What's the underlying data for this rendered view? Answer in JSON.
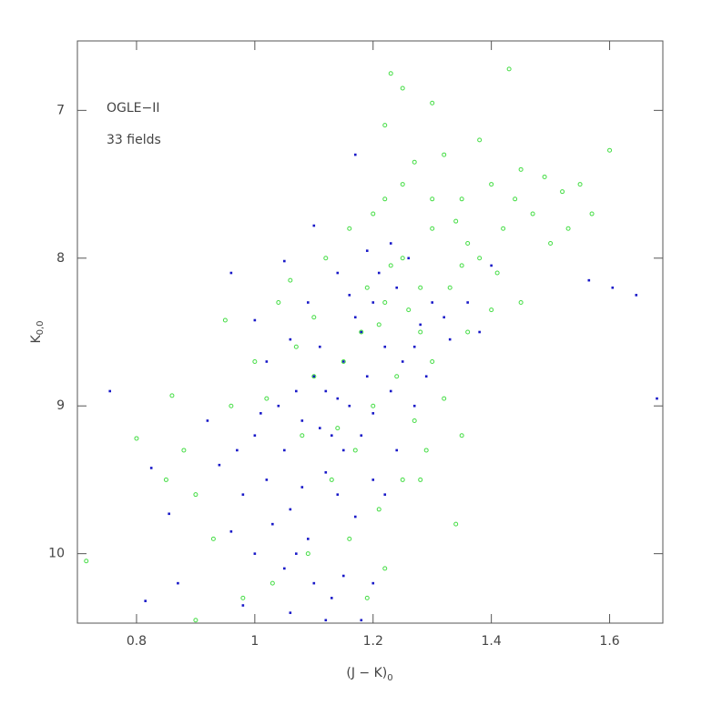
{
  "chart_data": {
    "type": "scatter",
    "annotations": [
      "OGLE−II",
      "33 fields"
    ],
    "x_label": "(J − K)",
    "x_label_sub": "0",
    "y_label": "K",
    "y_label_sub": "0,0",
    "xlim": [
      0.7,
      1.69
    ],
    "ylim": [
      10.47,
      6.53
    ],
    "xticks": [
      0.8,
      1,
      1.2,
      1.4,
      1.6
    ],
    "yticks": [
      7,
      8,
      9,
      10
    ],
    "series": [
      {
        "color": "#1818c8",
        "marker": "dot",
        "x": [
          0.755,
          1.565,
          1.605,
          1.645,
          1.68,
          0.815,
          0.825,
          0.855,
          0.87,
          1.1,
          1.17,
          1.05,
          1.0,
          0.96,
          1.05,
          1.08,
          1.12,
          1.15,
          1.18,
          1.2,
          1.1,
          1.13,
          1.02,
          0.98,
          1.06,
          1.09,
          1.14,
          1.16,
          1.19,
          1.22,
          1.24,
          1.26,
          1.21,
          1.17,
          1.11,
          1.07,
          1.04,
          1.0,
          0.97,
          0.94,
          0.92,
          1.03,
          1.07,
          1.1,
          1.13,
          1.05,
          1.0,
          0.96,
          1.12,
          1.15,
          1.18,
          1.2,
          1.23,
          1.25,
          1.28,
          1.3,
          1.27,
          1.14,
          1.09,
          1.06,
          1.02,
          1.16,
          1.19,
          1.23,
          1.32,
          1.33,
          1.36,
          1.38,
          1.4,
          1.29,
          1.2,
          1.17,
          1.08,
          1.11,
          1.14,
          1.01,
          1.12,
          1.18,
          0.98,
          1.06,
          1.15,
          1.2,
          1.22,
          1.24,
          1.27
        ],
        "values": [
          8.9,
          8.15,
          8.2,
          8.25,
          8.95,
          10.32,
          9.42,
          9.73,
          10.2,
          7.78,
          7.3,
          8.02,
          8.42,
          8.1,
          9.3,
          9.1,
          8.9,
          8.7,
          8.5,
          8.3,
          8.8,
          9.2,
          9.5,
          9.6,
          9.7,
          9.9,
          9.6,
          9.0,
          8.8,
          8.6,
          8.2,
          8.0,
          8.1,
          8.4,
          8.6,
          8.9,
          9.0,
          9.2,
          9.3,
          9.4,
          9.1,
          9.8,
          10.0,
          10.2,
          10.3,
          10.1,
          10.0,
          9.85,
          9.45,
          9.3,
          9.2,
          9.05,
          8.9,
          8.7,
          8.45,
          8.3,
          8.6,
          8.1,
          8.3,
          8.55,
          8.7,
          8.25,
          7.95,
          7.9,
          8.4,
          8.55,
          8.3,
          8.5,
          8.05,
          8.8,
          9.5,
          9.75,
          9.55,
          9.15,
          8.95,
          9.05,
          10.45,
          10.45,
          10.35,
          10.4,
          10.15,
          10.2,
          9.6,
          9.3,
          9.0
        ]
      },
      {
        "color": "#44dd44",
        "marker": "ring",
        "x": [
          0.715,
          0.8,
          0.86,
          1.43,
          1.6,
          1.57,
          1.52,
          1.25,
          1.23,
          1.34,
          1.3,
          1.35,
          0.9,
          0.95,
          1.22,
          1.25,
          1.3,
          1.35,
          1.4,
          1.28,
          1.22,
          1.18,
          1.15,
          1.2,
          1.25,
          1.32,
          1.38,
          1.45,
          1.42,
          1.47,
          1.5,
          1.38,
          1.33,
          1.28,
          1.24,
          1.2,
          1.17,
          1.13,
          1.1,
          1.07,
          1.04,
          1.0,
          1.12,
          1.16,
          1.22,
          1.27,
          1.3,
          1.36,
          1.41,
          1.45,
          1.36,
          1.3,
          1.27,
          1.29,
          1.25,
          1.21,
          1.16,
          1.09,
          1.03,
          0.98,
          0.93,
          0.9,
          0.88,
          0.96,
          1.02,
          1.08,
          1.14,
          1.19,
          1.23,
          1.34,
          1.44,
          1.49,
          1.55,
          1.53,
          1.35,
          1.4,
          1.32,
          1.26,
          1.21,
          1.1,
          1.06,
          1.19,
          1.22,
          0.85,
          1.28
        ],
        "values": [
          10.05,
          9.22,
          8.93,
          6.72,
          7.27,
          7.7,
          7.55,
          6.85,
          6.75,
          9.8,
          6.95,
          9.2,
          10.45,
          8.42,
          7.1,
          8.0,
          7.8,
          7.6,
          7.5,
          8.2,
          8.3,
          8.5,
          8.7,
          7.7,
          7.5,
          7.3,
          7.2,
          7.4,
          7.8,
          7.7,
          7.9,
          8.0,
          8.2,
          8.5,
          8.8,
          9.0,
          9.3,
          9.5,
          8.4,
          8.6,
          8.3,
          8.7,
          8.0,
          7.8,
          7.6,
          7.35,
          7.6,
          7.9,
          8.1,
          8.3,
          8.5,
          8.7,
          9.1,
          9.3,
          9.5,
          9.7,
          9.9,
          10.0,
          10.2,
          10.3,
          9.9,
          9.6,
          9.3,
          9.0,
          8.95,
          9.2,
          9.15,
          8.2,
          8.05,
          7.75,
          7.6,
          7.45,
          7.5,
          7.8,
          8.05,
          8.35,
          8.95,
          8.35,
          8.45,
          8.8,
          8.15,
          10.3,
          10.1,
          9.5,
          9.5
        ]
      }
    ]
  }
}
